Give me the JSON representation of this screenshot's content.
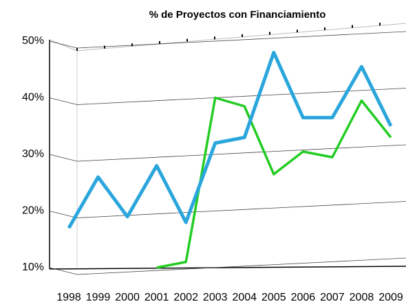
{
  "chart_data": {
    "type": "line",
    "title": "% de Proyectos con Financiamiento",
    "categories": [
      "1998",
      "1999",
      "2000",
      "2001",
      "2002",
      "2003",
      "2004",
      "2005",
      "2006",
      "2007",
      "2008",
      "2009"
    ],
    "series": [
      {
        "color": "#2aa6dc",
        "values": [
          17,
          26,
          19,
          28,
          18,
          32,
          33,
          48,
          36.5,
          36.5,
          45.5,
          35
        ]
      },
      {
        "color": "#22cc22",
        "values": [
          null,
          null,
          null,
          10,
          11,
          40,
          38.5,
          26.5,
          30.5,
          29.5,
          39.5,
          33
        ]
      }
    ],
    "ylim": [
      10,
      50
    ],
    "yticks": [
      {
        "value": 10,
        "label": "10%"
      },
      {
        "value": 20,
        "label": "20%"
      },
      {
        "value": 30,
        "label": "30%"
      },
      {
        "value": 40,
        "label": "40%"
      },
      {
        "value": 50,
        "label": "50%"
      }
    ],
    "grid": true
  }
}
